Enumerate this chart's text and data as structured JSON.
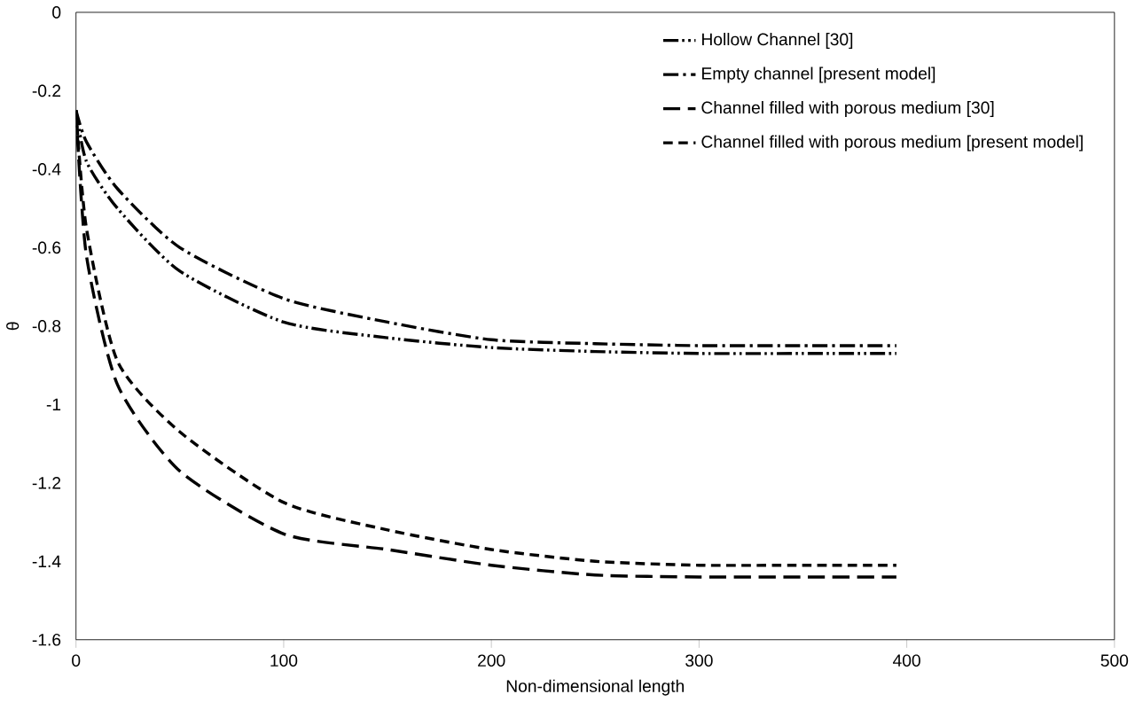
{
  "chart_data": {
    "type": "line",
    "xlabel": "Non-dimensional length",
    "ylabel": "θ",
    "xlim": [
      0,
      500
    ],
    "ylim": [
      -1.6,
      0
    ],
    "xticks": [
      0,
      100,
      200,
      300,
      400,
      500
    ],
    "yticks": [
      -1.6,
      -1.4,
      -1.2,
      -1,
      -0.8,
      -0.6,
      -0.4,
      -0.2,
      0
    ],
    "legend": "top right",
    "grid": false,
    "marker": "none",
    "series": [
      {
        "name": "Hollow Channel [30]",
        "color": "#000000",
        "line_style": "dashdotdotted",
        "x": [
          0,
          5,
          20,
          50,
          100,
          150,
          200,
          250,
          300,
          350,
          395
        ],
        "values": [
          -0.25,
          -0.38,
          -0.5,
          -0.66,
          -0.79,
          -0.83,
          -0.855,
          -0.865,
          -0.87,
          -0.87,
          -0.87
        ]
      },
      {
        "name": "Empty channel [present model]",
        "color": "#000000",
        "line_style": "dashdotted",
        "x": [
          0,
          5,
          20,
          50,
          100,
          150,
          200,
          250,
          300,
          350,
          395
        ],
        "values": [
          -0.25,
          -0.33,
          -0.45,
          -0.6,
          -0.73,
          -0.79,
          -0.835,
          -0.845,
          -0.85,
          -0.85,
          -0.85
        ]
      },
      {
        "name": "Channel filled with porous medium [30]",
        "color": "#000000",
        "line_style": "dashed",
        "x": [
          0,
          5,
          20,
          50,
          100,
          150,
          200,
          250,
          300,
          350,
          395
        ],
        "values": [
          -0.25,
          -0.62,
          -0.95,
          -1.17,
          -1.33,
          -1.37,
          -1.41,
          -1.435,
          -1.44,
          -1.44,
          -1.44
        ]
      },
      {
        "name": "Channel filled with porous medium [present model]",
        "color": "#000000",
        "line_style": "densely dashed",
        "x": [
          0,
          5,
          20,
          50,
          100,
          150,
          200,
          250,
          300,
          350,
          395
        ],
        "values": [
          -0.25,
          -0.55,
          -0.89,
          -1.07,
          -1.25,
          -1.32,
          -1.37,
          -1.4,
          -1.41,
          -1.41,
          -1.41
        ]
      }
    ]
  }
}
